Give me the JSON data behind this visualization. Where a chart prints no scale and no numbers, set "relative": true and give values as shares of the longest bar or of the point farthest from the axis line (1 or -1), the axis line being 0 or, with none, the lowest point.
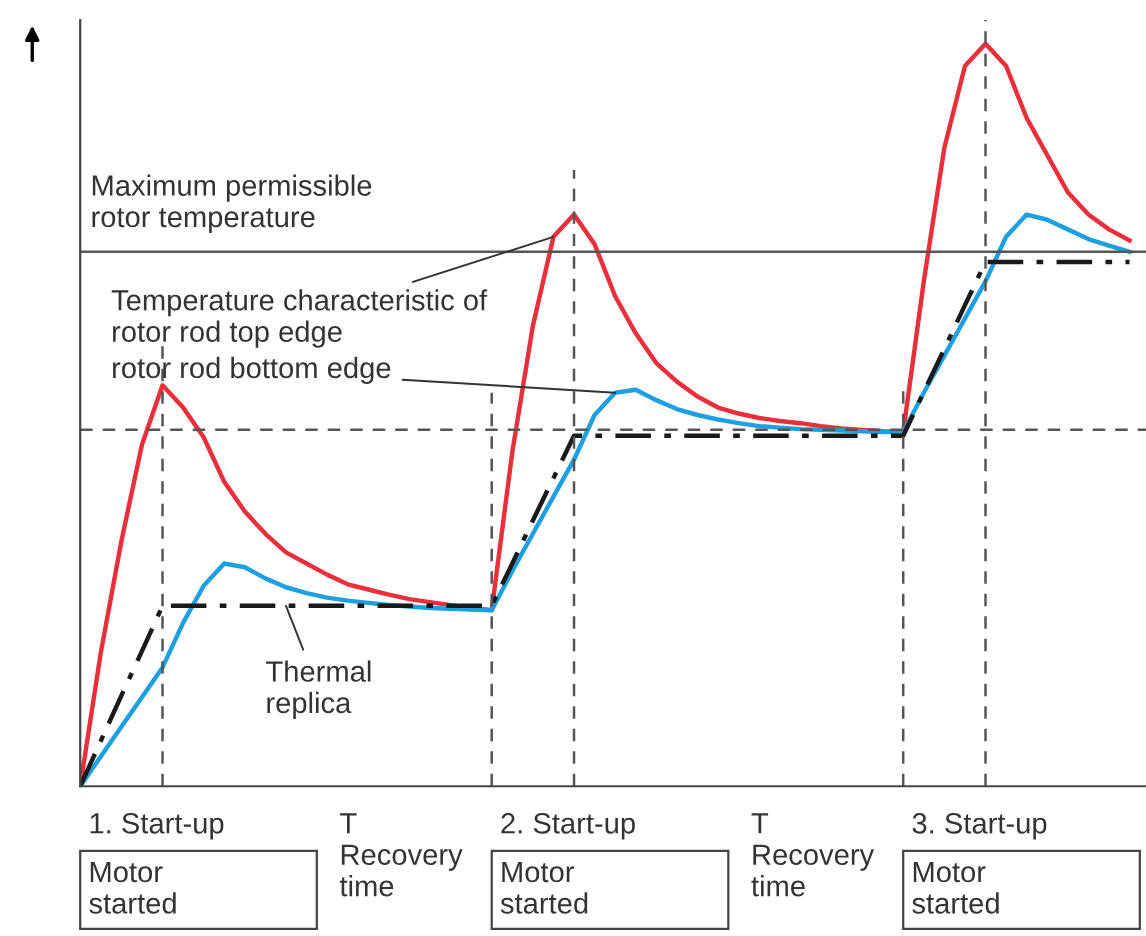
{
  "chart_data": {
    "type": "line",
    "relative": true,
    "categories": [
      null,
      null,
      null,
      null,
      null,
      null,
      null,
      null,
      null,
      null,
      null,
      null,
      null,
      null,
      null,
      null,
      null,
      null,
      null,
      null,
      null,
      null,
      null,
      null,
      null,
      null,
      null,
      null,
      null,
      null,
      null,
      null,
      null,
      null,
      null,
      null,
      null,
      null,
      null,
      null,
      null,
      null,
      null,
      null,
      null,
      null,
      null,
      null,
      null,
      null,
      null,
      null
    ],
    "series": [
      {
        "color": "#e8303c",
        "line_style": "solid",
        "values": [
          0,
          0.18,
          0.33,
          0.46,
          0.54,
          0.51,
          0.47,
          0.41,
          0.37,
          0.34,
          0.315,
          0.3,
          0.285,
          0.272,
          0.265,
          0.258,
          0.252,
          0.248,
          0.244,
          0.24,
          0.237,
          0.45,
          0.62,
          0.74,
          0.77,
          0.73,
          0.66,
          0.61,
          0.57,
          0.545,
          0.525,
          0.51,
          0.502,
          0.496,
          0.492,
          0.489,
          0.485,
          0.482,
          0.48,
          0.478,
          0.477,
          0.68,
          0.86,
          0.97,
          1,
          0.97,
          0.9,
          0.85,
          0.8,
          0.77,
          0.75,
          0.735
        ]
      },
      {
        "color": "#1ea0e0",
        "line_style": "solid",
        "values": [
          0,
          0.04,
          0.08,
          0.12,
          0.16,
          0.22,
          0.27,
          0.3,
          0.295,
          0.28,
          0.268,
          0.26,
          0.254,
          0.25,
          0.247,
          0.244,
          0.242,
          0.24,
          0.239,
          0.238,
          0.237,
          0.29,
          0.34,
          0.39,
          0.44,
          0.5,
          0.53,
          0.534,
          0.52,
          0.508,
          0.5,
          0.494,
          0.489,
          0.485,
          0.483,
          0.481,
          0.48,
          0.479,
          0.478,
          0.477,
          0.477,
          0.53,
          0.58,
          0.63,
          0.68,
          0.74,
          0.77,
          0.763,
          0.75,
          0.737,
          0.728,
          0.72
        ]
      },
      {
        "color": "#1a1a1a",
        "line_style": "dashdot",
        "values": [
          0,
          0.061,
          0.122,
          0.182,
          0.243,
          0.243,
          0.243,
          0.243,
          0.243,
          0.243,
          0.243,
          0.243,
          0.243,
          0.243,
          0.243,
          0.243,
          0.243,
          0.243,
          0.243,
          0.243,
          0.243,
          0.3,
          0.358,
          0.415,
          0.472,
          0.472,
          0.472,
          0.472,
          0.472,
          0.472,
          0.472,
          0.472,
          0.472,
          0.472,
          0.472,
          0.472,
          0.472,
          0.472,
          0.472,
          0.472,
          0.472,
          0.531,
          0.589,
          0.648,
          0.706,
          0.706,
          0.706,
          0.706,
          0.706,
          0.706,
          0.706,
          0.706
        ]
      }
    ],
    "ref_lines": [
      {
        "axis": "y",
        "value": 0.72,
        "label": "Maximum permissible\nrotor temperature",
        "color": "#555555",
        "line_style": "solid"
      },
      {
        "axis": "y",
        "value": 0.48,
        "label": null,
        "color": "#555555",
        "line_style": "dashed"
      }
    ],
    "annotations": [
      "Temperature characteristic of\nrotor rod top edge",
      "rotor rod bottom edge",
      "Thermal\nreplica",
      "1. Start-up",
      "2. Start-up",
      "3. Start-up",
      "T\nRecovery\ntime",
      "T\nRecovery\ntime",
      "Motor\nstarted",
      "Motor\nstarted",
      "Motor\nstarted"
    ]
  }
}
